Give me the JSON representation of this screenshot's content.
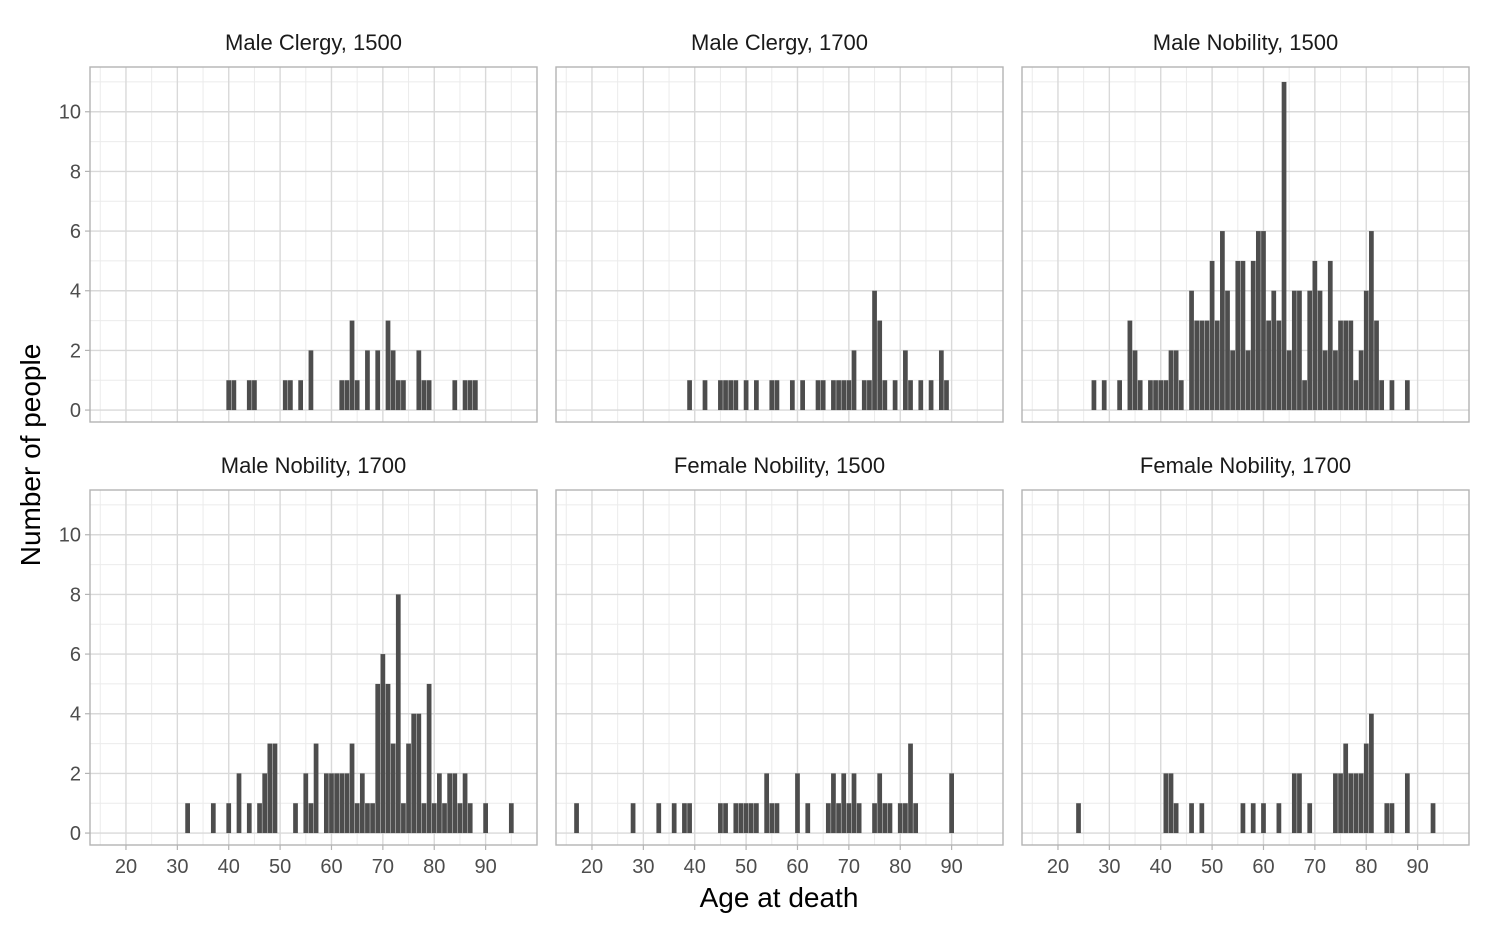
{
  "chart_data": {
    "type": "bar",
    "xlabel": "Age at death",
    "ylabel": "Number of people",
    "xlim": [
      13,
      100
    ],
    "ylim": [
      -0.4,
      11.5
    ],
    "x_ticks": [
      20,
      30,
      40,
      50,
      60,
      70,
      80,
      90
    ],
    "y_ticks": [
      0,
      2,
      4,
      6,
      8,
      10
    ],
    "grid": true,
    "bar_color": "#4d4d4d",
    "panels": [
      {
        "title": "Male Clergy, 1500",
        "x": [
          40,
          41,
          44,
          45,
          51,
          52,
          54,
          56,
          62,
          63,
          64,
          65,
          67,
          69,
          71,
          72,
          73,
          74,
          77,
          78,
          79,
          84,
          86,
          87,
          88
        ],
        "values": [
          1,
          1,
          1,
          1,
          1,
          1,
          1,
          2,
          1,
          1,
          3,
          1,
          2,
          2,
          3,
          2,
          1,
          1,
          2,
          1,
          1,
          1,
          1,
          1,
          1
        ]
      },
      {
        "title": "Male Clergy, 1700",
        "x": [
          39,
          42,
          45,
          46,
          47,
          48,
          50,
          52,
          55,
          56,
          59,
          61,
          64,
          65,
          67,
          68,
          69,
          70,
          71,
          73,
          74,
          75,
          76,
          77,
          79,
          81,
          82,
          84,
          86,
          88,
          89
        ],
        "values": [
          1,
          1,
          1,
          1,
          1,
          1,
          1,
          1,
          1,
          1,
          1,
          1,
          1,
          1,
          1,
          1,
          1,
          1,
          2,
          1,
          1,
          4,
          3,
          1,
          1,
          2,
          1,
          1,
          1,
          2,
          1
        ]
      },
      {
        "title": "Male Nobility, 1500",
        "x": [
          27,
          29,
          32,
          34,
          35,
          36,
          38,
          39,
          40,
          41,
          42,
          43,
          44,
          46,
          47,
          48,
          49,
          50,
          51,
          52,
          53,
          54,
          55,
          56,
          57,
          58,
          59,
          60,
          61,
          62,
          63,
          64,
          65,
          66,
          67,
          68,
          69,
          70,
          71,
          72,
          73,
          74,
          75,
          76,
          77,
          78,
          79,
          80,
          81,
          82,
          83,
          85,
          88
        ],
        "values": [
          1,
          1,
          1,
          3,
          2,
          1,
          1,
          1,
          1,
          1,
          2,
          2,
          1,
          4,
          3,
          3,
          3,
          5,
          3,
          6,
          4,
          2,
          5,
          5,
          2,
          5,
          6,
          6,
          3,
          4,
          3,
          11,
          2,
          4,
          4,
          1,
          4,
          5,
          4,
          2,
          5,
          2,
          3,
          3,
          3,
          1,
          2,
          4,
          6,
          3,
          1,
          1,
          1
        ]
      },
      {
        "title": "Male Nobility, 1700",
        "x": [
          32,
          37,
          40,
          42,
          44,
          46,
          47,
          48,
          49,
          53,
          55,
          56,
          57,
          59,
          60,
          61,
          62,
          63,
          64,
          65,
          66,
          67,
          68,
          69,
          70,
          71,
          72,
          73,
          74,
          75,
          76,
          77,
          78,
          79,
          80,
          81,
          82,
          83,
          84,
          85,
          86,
          87,
          90,
          95
        ],
        "values": [
          1,
          1,
          1,
          2,
          1,
          1,
          2,
          3,
          3,
          1,
          2,
          1,
          3,
          2,
          2,
          2,
          2,
          2,
          3,
          1,
          2,
          1,
          1,
          5,
          6,
          5,
          3,
          8,
          1,
          3,
          4,
          4,
          1,
          5,
          1,
          2,
          1,
          2,
          2,
          1,
          2,
          1,
          1,
          1
        ]
      },
      {
        "title": "Female Nobility, 1500",
        "x": [
          17,
          28,
          33,
          36,
          38,
          39,
          45,
          46,
          48,
          49,
          50,
          51,
          52,
          54,
          55,
          56,
          60,
          62,
          66,
          67,
          68,
          69,
          70,
          71,
          72,
          75,
          76,
          77,
          78,
          80,
          81,
          82,
          83,
          90
        ],
        "values": [
          1,
          1,
          1,
          1,
          1,
          1,
          1,
          1,
          1,
          1,
          1,
          1,
          1,
          2,
          1,
          1,
          2,
          1,
          1,
          2,
          1,
          2,
          1,
          2,
          1,
          1,
          2,
          1,
          1,
          1,
          1,
          3,
          1,
          2
        ]
      },
      {
        "title": "Female Nobility, 1700",
        "x": [
          24,
          41,
          42,
          43,
          46,
          48,
          56,
          58,
          60,
          63,
          66,
          67,
          69,
          74,
          75,
          76,
          77,
          78,
          79,
          80,
          81,
          84,
          85,
          88,
          93
        ],
        "values": [
          1,
          2,
          2,
          1,
          1,
          1,
          1,
          1,
          1,
          1,
          2,
          2,
          1,
          2,
          2,
          3,
          2,
          2,
          2,
          3,
          4,
          1,
          1,
          2,
          1
        ]
      }
    ]
  }
}
